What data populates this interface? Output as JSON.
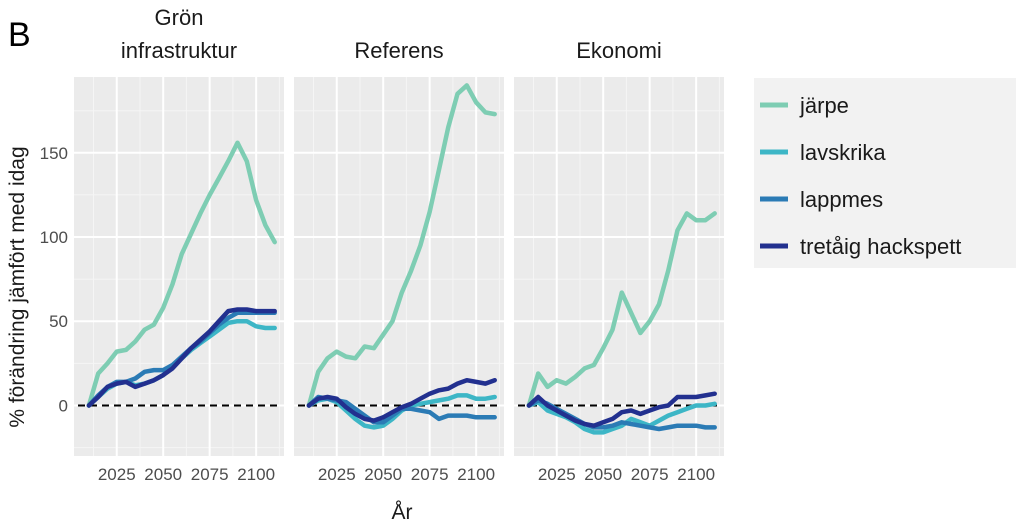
{
  "chart_data": {
    "type": "line",
    "tag": "B",
    "ylabel": "% förändring jämfört med idag",
    "xlabel": "År",
    "xlim": [
      2002,
      2115
    ],
    "ylim": [
      -30,
      195
    ],
    "x_ticks": [
      "2025",
      "2050",
      "2075",
      "2100"
    ],
    "y_ticks": [
      "0",
      "50",
      "100",
      "150"
    ],
    "reference_line": {
      "y": 0,
      "style": "dashed"
    },
    "legend_position": "right",
    "legend_labels": [
      "järpe",
      "lavskrika",
      "lappmes",
      "tretåig hackspett"
    ],
    "colors": {
      "järpe": "#7ecdb3",
      "lavskrika": "#3db6c6",
      "lappmes": "#2b7bb5",
      "tretåig hackspett": "#22308f"
    },
    "panels": [
      {
        "title_lines": [
          "Grön",
          "infrastruktur"
        ],
        "x": [
          2010,
          2015,
          2020,
          2025,
          2030,
          2035,
          2040,
          2045,
          2050,
          2055,
          2060,
          2065,
          2070,
          2075,
          2080,
          2085,
          2090,
          2095,
          2100,
          2105,
          2110
        ],
        "series": [
          {
            "name": "järpe",
            "values": [
              0,
              19,
              25,
              32,
              33,
              38,
              45,
              48,
              58,
              72,
              90,
              102,
              114,
              125,
              135,
              145,
              156,
              145,
              122,
              107,
              97
            ]
          },
          {
            "name": "lavskrika",
            "values": [
              0,
              5,
              10,
              13,
              14,
              12,
              13,
              15,
              18,
              23,
              28,
              33,
              37,
              41,
              45,
              49,
              50,
              50,
              47,
              46,
              46
            ]
          },
          {
            "name": "lappmes",
            "values": [
              0,
              6,
              11,
              14,
              14,
              16,
              20,
              21,
              21,
              24,
              29,
              34,
              38,
              43,
              48,
              52,
              55,
              55,
              55,
              55,
              55
            ]
          },
          {
            "name": "tretåig hackspett",
            "values": [
              0,
              5,
              11,
              13,
              14,
              11,
              13,
              15,
              18,
              22,
              28,
              34,
              39,
              44,
              50,
              56,
              57,
              57,
              56,
              56,
              56
            ]
          }
        ]
      },
      {
        "title_lines": [
          "Referens"
        ],
        "x": [
          2010,
          2015,
          2020,
          2025,
          2030,
          2035,
          2040,
          2045,
          2050,
          2055,
          2060,
          2065,
          2070,
          2075,
          2080,
          2085,
          2090,
          2095,
          2100,
          2105,
          2110
        ],
        "series": [
          {
            "name": "järpe",
            "values": [
              0,
              20,
              28,
              32,
              29,
              28,
              35,
              34,
              42,
              50,
              67,
              80,
              95,
              115,
              140,
              165,
              185,
              190,
              180,
              174,
              173
            ]
          },
          {
            "name": "lavskrika",
            "values": [
              0,
              3,
              4,
              2,
              -3,
              -8,
              -12,
              -13,
              -12,
              -8,
              -3,
              0,
              1,
              2,
              3,
              4,
              6,
              6,
              4,
              4,
              5
            ]
          },
          {
            "name": "lappmes",
            "values": [
              0,
              5,
              4,
              3,
              2,
              -2,
              -6,
              -10,
              -10,
              -6,
              -2,
              -2,
              -3,
              -4,
              -8,
              -6,
              -6,
              -6,
              -7,
              -7,
              -7
            ]
          },
          {
            "name": "tretåig hackspett",
            "values": [
              0,
              4,
              5,
              4,
              -1,
              -5,
              -8,
              -9,
              -7,
              -4,
              -1,
              1,
              4,
              7,
              9,
              10,
              13,
              15,
              14,
              13,
              15
            ]
          }
        ]
      },
      {
        "title_lines": [
          "Ekonomi"
        ],
        "x": [
          2010,
          2015,
          2020,
          2025,
          2030,
          2035,
          2040,
          2045,
          2050,
          2055,
          2060,
          2065,
          2070,
          2075,
          2080,
          2085,
          2090,
          2095,
          2100,
          2105,
          2110
        ],
        "series": [
          {
            "name": "järpe",
            "values": [
              0,
              19,
              11,
              15,
              13,
              17,
              22,
              24,
              34,
              45,
              67,
              55,
              43,
              50,
              60,
              80,
              104,
              114,
              110,
              110,
              114
            ]
          },
          {
            "name": "lavskrika",
            "values": [
              0,
              2,
              -3,
              -5,
              -7,
              -10,
              -14,
              -16,
              -16,
              -14,
              -12,
              -8,
              -10,
              -12,
              -9,
              -6,
              -4,
              -2,
              0,
              0,
              1
            ]
          },
          {
            "name": "lappmes",
            "values": [
              0,
              3,
              1,
              -2,
              -5,
              -8,
              -11,
              -13,
              -13,
              -12,
              -10,
              -11,
              -12,
              -13,
              -14,
              -13,
              -12,
              -12,
              -12,
              -13,
              -13
            ]
          },
          {
            "name": "tretåig hackspett",
            "values": [
              0,
              5,
              0,
              -3,
              -6,
              -9,
              -11,
              -12,
              -10,
              -8,
              -4,
              -3,
              -5,
              -3,
              -1,
              0,
              5,
              5,
              5,
              6,
              7
            ]
          }
        ]
      }
    ]
  }
}
